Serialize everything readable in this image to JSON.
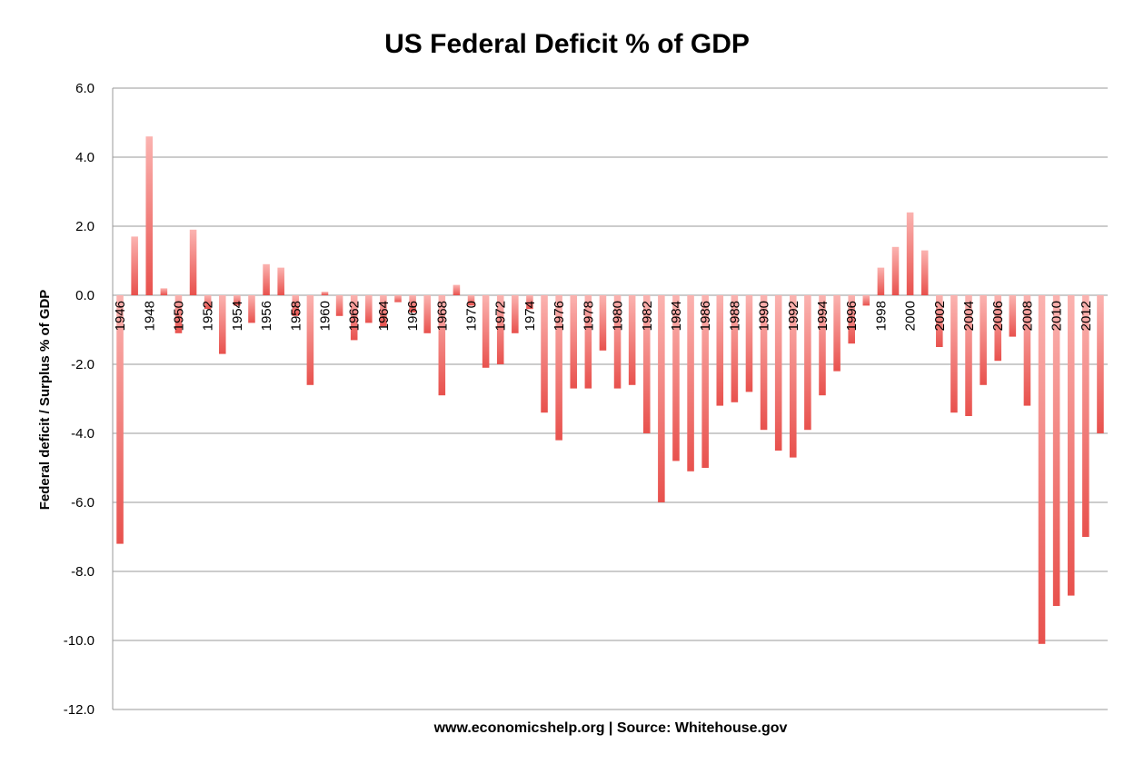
{
  "chart_data": {
    "type": "bar",
    "title": "US Federal Deficit % of GDP",
    "ylabel": "Federal deficit / Surplus % of GDP",
    "xlabel": "www.economicshelp.org | Source: Whitehouse.gov",
    "ylim": [
      -12,
      6
    ],
    "ytick_step": 2,
    "grid": true,
    "bar_color": "#e8514d",
    "bar_color_light": "#fbb3b0",
    "x": [
      1946,
      1947,
      1948,
      1949,
      1950,
      1951,
      1952,
      1953,
      1954,
      1955,
      1956,
      1957,
      1958,
      1959,
      1960,
      1961,
      1962,
      1963,
      1964,
      1965,
      1966,
      1967,
      1968,
      1969,
      1970,
      1971,
      1972,
      1973,
      1974,
      1975,
      1976,
      1977,
      1978,
      1979,
      1980,
      1981,
      1982,
      1983,
      1984,
      1985,
      1986,
      1987,
      1988,
      1989,
      1990,
      1991,
      1992,
      1993,
      1994,
      1995,
      1996,
      1997,
      1998,
      1999,
      2000,
      2001,
      2002,
      2003,
      2004,
      2005,
      2006,
      2007,
      2008,
      2009,
      2010,
      2011,
      2012,
      2013
    ],
    "values": [
      -7.2,
      1.7,
      4.6,
      0.2,
      -1.1,
      1.9,
      -0.4,
      -1.7,
      -0.3,
      -0.8,
      0.9,
      0.8,
      -0.6,
      -2.6,
      0.1,
      -0.6,
      -1.3,
      -0.8,
      -0.9,
      -0.2,
      -0.5,
      -1.1,
      -2.9,
      0.3,
      -0.3,
      -2.1,
      -2.0,
      -1.1,
      -0.4,
      -3.4,
      -4.2,
      -2.7,
      -2.7,
      -1.6,
      -2.7,
      -2.6,
      -4.0,
      -6.0,
      -4.8,
      -5.1,
      -5.0,
      -3.2,
      -3.1,
      -2.8,
      -3.9,
      -4.5,
      -4.7,
      -3.9,
      -2.9,
      -2.2,
      -1.4,
      -0.3,
      0.8,
      1.4,
      2.4,
      1.3,
      -1.5,
      -3.4,
      -3.5,
      -2.6,
      -1.9,
      -1.2,
      -3.2,
      -10.1,
      -9.0,
      -8.7,
      -7.0,
      -4.0
    ],
    "tick_labels": [
      "1946",
      "1948",
      "1950",
      "1952",
      "1954",
      "1956",
      "1958",
      "1960",
      "1962",
      "1964",
      "1966",
      "1968",
      "1970",
      "1972",
      "1974",
      "1976",
      "1978",
      "1980",
      "1982",
      "1984",
      "1986",
      "1988",
      "1990",
      "1992",
      "1994",
      "1996",
      "1998",
      "2000",
      "2002",
      "2004",
      "2006",
      "2008",
      "2010",
      "2012"
    ],
    "y_tick_labels": [
      "6.0",
      "4.0",
      "2.0",
      "0.0",
      "-2.0",
      "-4.0",
      "-6.0",
      "-8.0",
      "-10.0",
      "-12.0"
    ]
  }
}
